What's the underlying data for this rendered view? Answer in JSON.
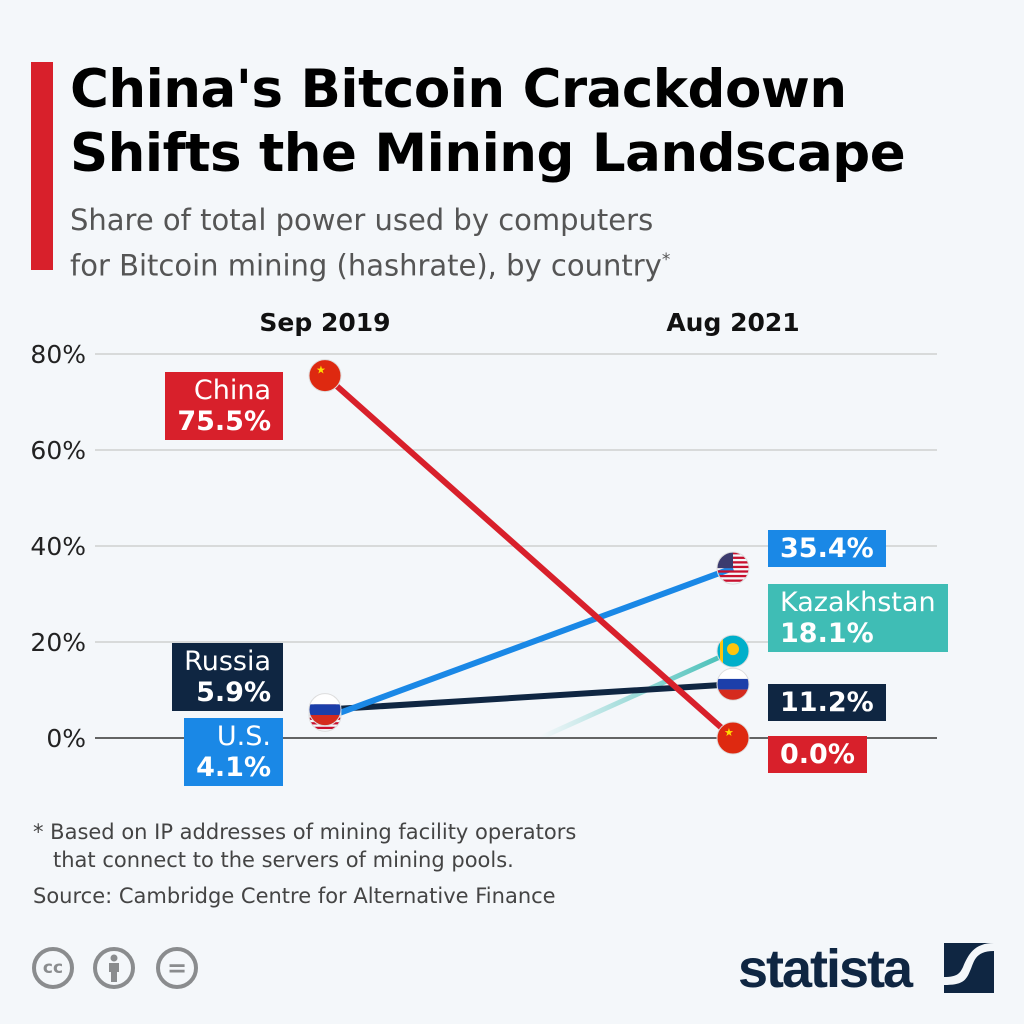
{
  "header": {
    "title": "China's Bitcoin Crackdown Shifts the Mining Landscape",
    "subtitle_line1": "Share of total power used by computers",
    "subtitle_line2": "for Bitcoin mining (hashrate), by country",
    "subtitle_mark": "*",
    "accent_color": "#d8202b"
  },
  "chart_data": {
    "type": "line",
    "categories": [
      "Sep 2019",
      "Aug 2021"
    ],
    "ylim": [
      0,
      80
    ],
    "yticks": [
      0,
      20,
      40,
      60,
      80
    ],
    "ytick_labels": [
      "0%",
      "20%",
      "40%",
      "60%",
      "80%"
    ],
    "grid": true,
    "series": [
      {
        "name": "China",
        "values": [
          75.5,
          0.0
        ],
        "labels": [
          "75.5%",
          "0.0%"
        ],
        "color": "#d8202b",
        "icon": "china-flag-icon"
      },
      {
        "name": "U.S.",
        "values": [
          4.1,
          35.4
        ],
        "labels": [
          "4.1%",
          "35.4%"
        ],
        "color": "#1a88e6",
        "icon": "us-flag-icon"
      },
      {
        "name": "Kazakhstan",
        "values": [
          null,
          18.1
        ],
        "labels": [
          "",
          "18.1%"
        ],
        "color": "#3fbdb5",
        "icon": "kazakhstan-flag-icon"
      },
      {
        "name": "Russia",
        "values": [
          5.9,
          11.2
        ],
        "labels": [
          "5.9%",
          "11.2%"
        ],
        "color": "#0f2642",
        "icon": "russia-flag-icon"
      }
    ]
  },
  "footer": {
    "note_line1": "* Based on IP addresses of mining facility operators",
    "note_line2": "that connect to the servers of mining pools.",
    "source": "Source: Cambridge Centre for Alternative Finance",
    "cc_text": "cc",
    "equals_text": "=",
    "logo": "statista"
  }
}
